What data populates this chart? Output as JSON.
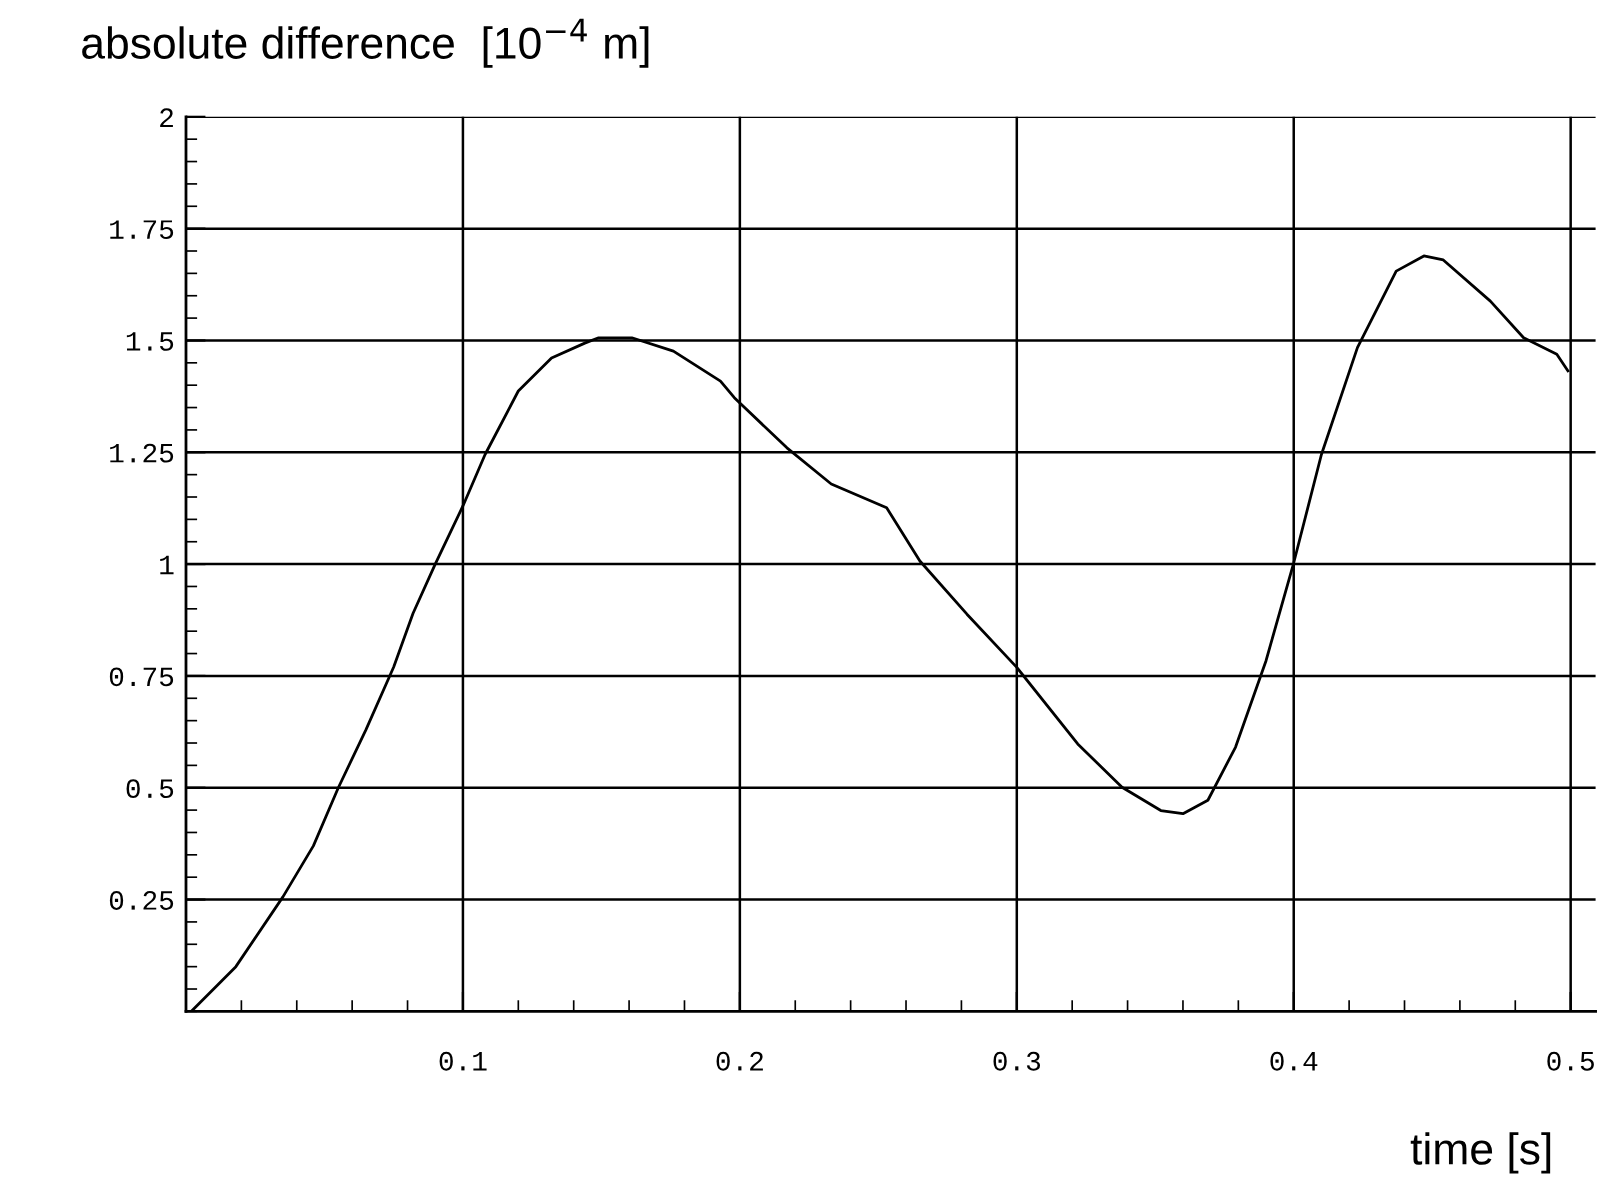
{
  "chart_data": {
    "type": "line",
    "ylabel": "absolute difference  [10$^{−4}$ m]",
    "xlabel": "time [s]",
    "x": [
      0.0024,
      0.018,
      0.035,
      0.046,
      0.055,
      0.065,
      0.075,
      0.082,
      0.09,
      0.1,
      0.108,
      0.12,
      0.132,
      0.144,
      0.149,
      0.161,
      0.176,
      0.193,
      0.198,
      0.217,
      0.233,
      0.253,
      0.265,
      0.282,
      0.3,
      0.322,
      0.338,
      0.352,
      0.36,
      0.369,
      0.379,
      0.39,
      0.4,
      0.41,
      0.423,
      0.437,
      0.447,
      0.454,
      0.471,
      0.483,
      0.495,
      0.499
    ],
    "series": [
      {
        "color": "#000000",
        "values": [
          0.003,
          0.1,
          0.256,
          0.37,
          0.5,
          0.63,
          0.77,
          0.89,
          1.0,
          1.13,
          1.245,
          1.387,
          1.461,
          1.494,
          1.506,
          1.506,
          1.476,
          1.409,
          1.372,
          1.26,
          1.179,
          1.126,
          1.007,
          0.888,
          0.769,
          0.598,
          0.501,
          0.449,
          0.442,
          0.472,
          0.591,
          0.784,
          1.003,
          1.245,
          1.484,
          1.655,
          1.689,
          1.68,
          1.588,
          1.506,
          1.469,
          1.432
        ]
      }
    ],
    "xlim": [
      0,
      0.509
    ],
    "ylim": [
      0,
      2
    ],
    "xticks": [
      0.1,
      0.2,
      0.3,
      0.4,
      0.5
    ],
    "yticks": [
      {
        "value": 0.25,
        "label": "0.25"
      },
      {
        "value": 0.5,
        "label": "0.5"
      },
      {
        "value": 0.75,
        "label": "0.75"
      },
      {
        "value": 1,
        "label": "1"
      },
      {
        "value": 1.25,
        "label": "1.25"
      },
      {
        "value": 1.5,
        "label": "1.5"
      },
      {
        "value": 1.75,
        "label": "1.75"
      },
      {
        "value": 2,
        "label": "2"
      }
    ],
    "grid": true,
    "marker": "none",
    "line_style": "solid"
  }
}
